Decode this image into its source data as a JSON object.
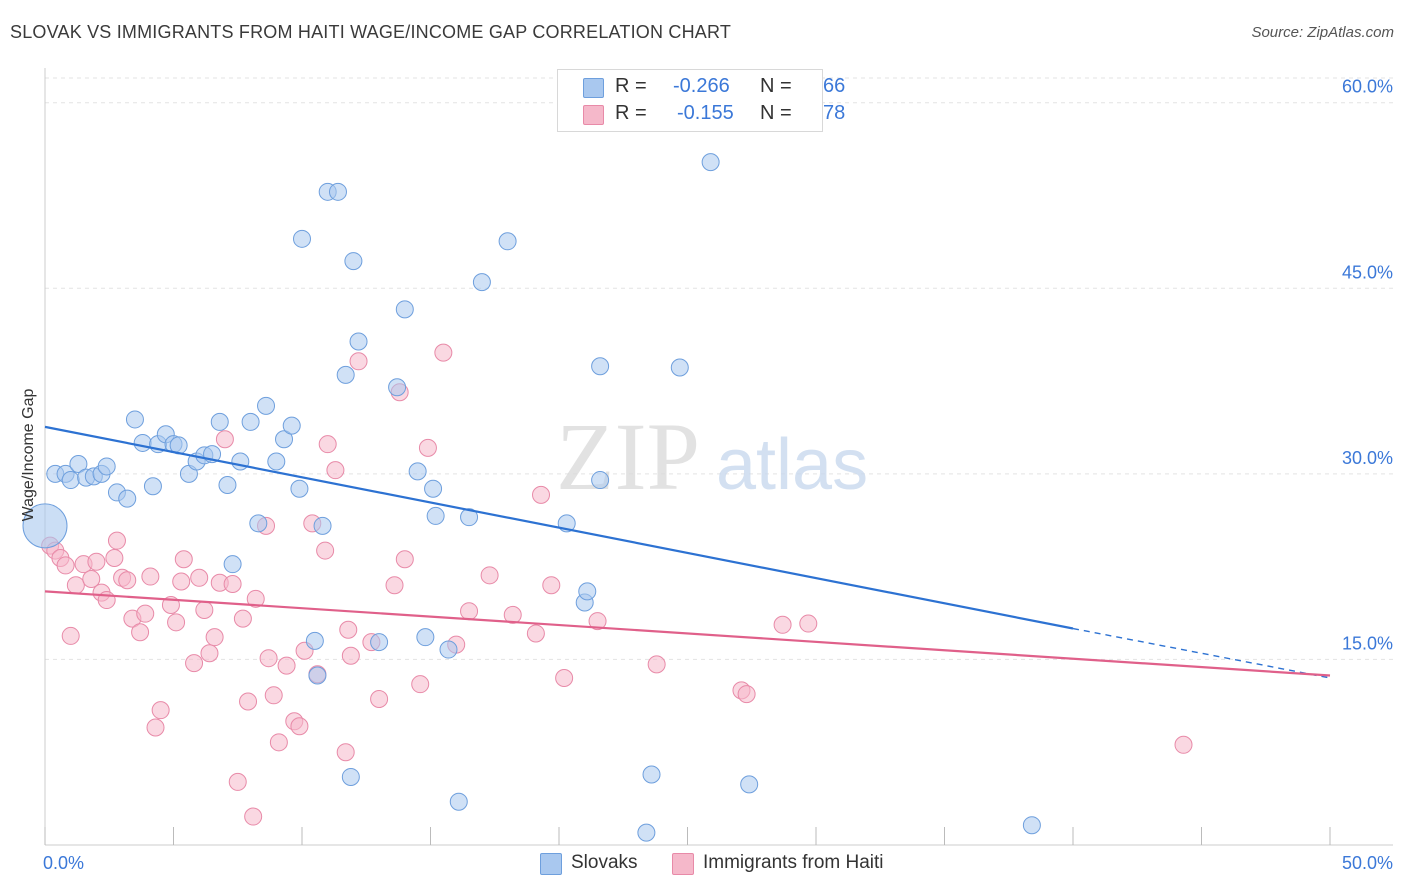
{
  "title": "SLOVAK VS IMMIGRANTS FROM HAITI WAGE/INCOME GAP CORRELATION CHART",
  "source": "Source: ZipAtlas.com",
  "watermark": {
    "zip": "ZIP",
    "atlas": "atlas"
  },
  "legend": {
    "r_label": "R =",
    "n_label": "N =",
    "series": [
      {
        "r": "-0.266",
        "n": "66",
        "color": "#a9c8ef"
      },
      {
        "r": "-0.155",
        "n": "78",
        "color": "#f5b8ca"
      }
    ]
  },
  "bottom_legend": [
    {
      "label": "Slovaks",
      "color": "#a9c8ef"
    },
    {
      "label": "Immigrants from Haiti",
      "color": "#f5b8ca"
    }
  ],
  "colors": {
    "slovaks_fill": "#a9c8ef",
    "slovaks_stroke": "#6e9fdd",
    "slovaks_line": "#2d72d2",
    "haiti_fill": "#f5b8ca",
    "haiti_stroke": "#e88aa8",
    "haiti_line": "#e0608a",
    "grid": "#e3e3e3",
    "tick_text": "#3b78d8"
  },
  "chart_data": {
    "type": "scatter",
    "title": "SLOVAK VS IMMIGRANTS FROM HAITI WAGE/INCOME GAP CORRELATION CHART",
    "xlabel": "",
    "ylabel": "Wage/Income Gap",
    "xlim": [
      0,
      50
    ],
    "ylim": [
      0,
      62
    ],
    "x_tick_labels": [
      "0.0%",
      "50.0%"
    ],
    "y_ticks": [
      15,
      30,
      45,
      60
    ],
    "y_tick_labels": [
      "15.0%",
      "30.0%",
      "45.0%",
      "60.0%"
    ],
    "grid": true,
    "legend_position": "top-center",
    "series": [
      {
        "name": "Slovaks",
        "r": -0.266,
        "n": 66,
        "trend": {
          "x0": 0,
          "y0": 33.8,
          "x1": 40,
          "y1": 17.5,
          "dashed_to_x": 50,
          "dashed_to_y": 13.5
        },
        "points": [
          [
            0,
            25.8
          ],
          [
            0.4,
            30
          ],
          [
            0.8,
            30
          ],
          [
            1.0,
            29.5
          ],
          [
            1.3,
            30.8
          ],
          [
            1.6,
            29.7
          ],
          [
            1.9,
            29.8
          ],
          [
            2.2,
            30
          ],
          [
            2.4,
            30.6
          ],
          [
            2.8,
            28.5
          ],
          [
            3.2,
            28
          ],
          [
            3.5,
            34.4
          ],
          [
            3.8,
            32.5
          ],
          [
            4.2,
            29
          ],
          [
            4.4,
            32.4
          ],
          [
            4.7,
            33.2
          ],
          [
            5.0,
            32.4
          ],
          [
            5.2,
            32.3
          ],
          [
            5.6,
            30
          ],
          [
            5.9,
            31
          ],
          [
            6.2,
            31.5
          ],
          [
            6.5,
            31.6
          ],
          [
            6.8,
            34.2
          ],
          [
            7.1,
            29.1
          ],
          [
            7.3,
            22.7
          ],
          [
            7.6,
            31
          ],
          [
            8.0,
            34.2
          ],
          [
            8.3,
            26
          ],
          [
            8.6,
            35.5
          ],
          [
            9.0,
            31
          ],
          [
            9.3,
            32.8
          ],
          [
            9.6,
            33.9
          ],
          [
            9.9,
            28.8
          ],
          [
            10.0,
            49
          ],
          [
            10.5,
            16.5
          ],
          [
            10.6,
            13.7
          ],
          [
            10.8,
            25.8
          ],
          [
            11.0,
            52.8
          ],
          [
            11.4,
            52.8
          ],
          [
            11.9,
            5.5
          ],
          [
            12.0,
            47.2
          ],
          [
            12.2,
            40.7
          ],
          [
            11.7,
            38
          ],
          [
            13.0,
            16.4
          ],
          [
            13.7,
            37
          ],
          [
            14.0,
            43.3
          ],
          [
            14.5,
            30.2
          ],
          [
            14.8,
            16.8
          ],
          [
            15.1,
            28.8
          ],
          [
            15.2,
            26.6
          ],
          [
            15.7,
            15.8
          ],
          [
            16.1,
            3.5
          ],
          [
            16.5,
            26.5
          ],
          [
            17.0,
            45.5
          ],
          [
            18.0,
            48.8
          ],
          [
            20.3,
            26
          ],
          [
            21.0,
            19.6
          ],
          [
            21.1,
            20.5
          ],
          [
            21.6,
            38.7
          ],
          [
            21.6,
            29.5
          ],
          [
            23.4,
            1
          ],
          [
            23.6,
            5.7
          ],
          [
            24.7,
            38.6
          ],
          [
            25.9,
            55.2
          ],
          [
            27.4,
            4.9
          ],
          [
            38.4,
            1.6
          ]
        ]
      },
      {
        "name": "Immigrants from Haiti",
        "r": -0.155,
        "n": 78,
        "trend": {
          "x0": 0,
          "y0": 20.5,
          "x1": 50,
          "y1": 13.7
        },
        "points": [
          [
            0.2,
            24.2
          ],
          [
            0.4,
            23.8
          ],
          [
            0.6,
            23.2
          ],
          [
            0.8,
            22.6
          ],
          [
            1.0,
            16.9
          ],
          [
            1.2,
            21
          ],
          [
            1.5,
            22.7
          ],
          [
            1.8,
            21.5
          ],
          [
            2.0,
            22.9
          ],
          [
            2.2,
            20.4
          ],
          [
            2.4,
            19.8
          ],
          [
            2.7,
            23.2
          ],
          [
            2.8,
            24.6
          ],
          [
            3.0,
            21.6
          ],
          [
            3.2,
            21.4
          ],
          [
            3.4,
            18.3
          ],
          [
            3.7,
            17.2
          ],
          [
            3.9,
            18.7
          ],
          [
            4.1,
            21.7
          ],
          [
            4.3,
            9.5
          ],
          [
            4.5,
            10.9
          ],
          [
            4.9,
            19.4
          ],
          [
            5.1,
            18
          ],
          [
            5.3,
            21.3
          ],
          [
            5.4,
            23.1
          ],
          [
            5.8,
            14.7
          ],
          [
            6.0,
            21.6
          ],
          [
            6.2,
            19
          ],
          [
            6.4,
            15.5
          ],
          [
            6.6,
            16.8
          ],
          [
            6.8,
            21.2
          ],
          [
            7.0,
            32.8
          ],
          [
            7.3,
            21.1
          ],
          [
            7.5,
            5.1
          ],
          [
            7.7,
            18.3
          ],
          [
            7.9,
            11.6
          ],
          [
            8.1,
            2.3
          ],
          [
            8.2,
            19.9
          ],
          [
            8.6,
            25.8
          ],
          [
            8.7,
            15.1
          ],
          [
            8.9,
            12.1
          ],
          [
            9.1,
            8.3
          ],
          [
            9.4,
            14.5
          ],
          [
            9.7,
            10
          ],
          [
            9.9,
            9.6
          ],
          [
            10.1,
            15.7
          ],
          [
            10.4,
            26
          ],
          [
            10.6,
            13.8
          ],
          [
            10.9,
            23.8
          ],
          [
            11.0,
            32.4
          ],
          [
            11.3,
            30.3
          ],
          [
            11.7,
            7.5
          ],
          [
            11.8,
            17.4
          ],
          [
            11.9,
            15.3
          ],
          [
            12.2,
            39.1
          ],
          [
            12.7,
            16.4
          ],
          [
            13.0,
            11.8
          ],
          [
            13.6,
            21
          ],
          [
            13.8,
            36.6
          ],
          [
            14.0,
            23.1
          ],
          [
            14.6,
            13
          ],
          [
            14.9,
            32.1
          ],
          [
            15.5,
            39.8
          ],
          [
            16.0,
            16.2
          ],
          [
            16.5,
            18.9
          ],
          [
            17.3,
            21.8
          ],
          [
            18.2,
            18.6
          ],
          [
            19.1,
            17.1
          ],
          [
            19.3,
            28.3
          ],
          [
            19.7,
            21
          ],
          [
            20.2,
            13.5
          ],
          [
            21.5,
            18.1
          ],
          [
            23.8,
            14.6
          ],
          [
            27.1,
            12.5
          ],
          [
            27.3,
            12.2
          ],
          [
            28.7,
            17.8
          ],
          [
            29.7,
            17.9
          ],
          [
            44.3,
            8.1
          ]
        ]
      }
    ]
  }
}
